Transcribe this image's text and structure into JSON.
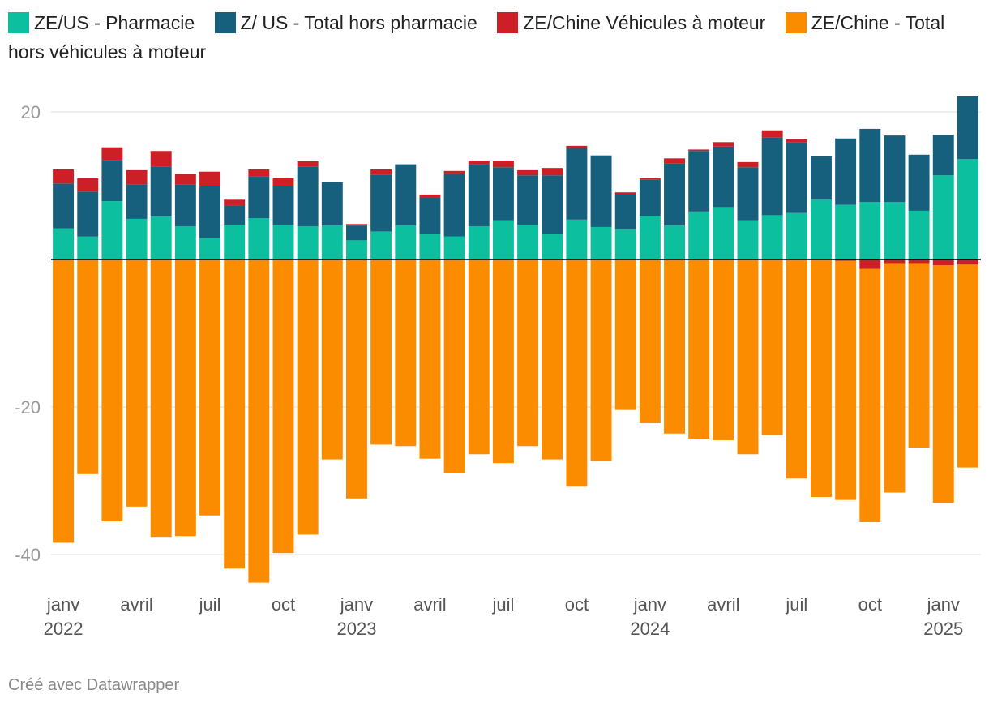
{
  "chart_data": {
    "type": "stacked-bar",
    "categories": [
      "janv",
      null,
      null,
      "avril",
      null,
      null,
      "juil",
      null,
      null,
      "oct",
      null,
      null,
      "janv",
      null,
      null,
      "avril",
      null,
      null,
      "juil",
      null,
      null,
      "oct",
      null,
      null,
      "janv",
      null,
      null,
      "avril",
      null,
      null,
      "juil",
      null,
      null,
      "oct",
      null,
      null,
      "janv",
      null
    ],
    "category_years": [
      "2022",
      null,
      null,
      null,
      null,
      null,
      null,
      null,
      null,
      null,
      null,
      null,
      "2023",
      null,
      null,
      null,
      null,
      null,
      null,
      null,
      null,
      null,
      null,
      null,
      "2024",
      null,
      null,
      null,
      null,
      null,
      null,
      null,
      null,
      null,
      null,
      null,
      "2025",
      null
    ],
    "series": [
      {
        "name": "ZE/US - Pharmacie",
        "color": "#0bbf9f",
        "values": [
          4.2,
          3.1,
          7.9,
          5.5,
          5.8,
          4.5,
          2.9,
          4.7,
          5.6,
          4.7,
          4.5,
          4.6,
          2.6,
          3.8,
          4.6,
          3.5,
          3.1,
          4.5,
          5.3,
          4.7,
          3.5,
          5.4,
          4.4,
          4.1,
          5.9,
          4.6,
          6.5,
          7.1,
          5.3,
          6.0,
          6.3,
          8.1,
          7.4,
          7.8,
          7.8,
          6.6,
          11.4,
          13.6
        ]
      },
      {
        "name": "Z/ US - Total hors pharmacie",
        "color": "#17607d",
        "values": [
          6.1,
          6.1,
          5.6,
          4.7,
          6.8,
          5.7,
          7.0,
          2.6,
          5.7,
          5.3,
          8.1,
          5.9,
          2.0,
          7.7,
          8.3,
          4.9,
          8.5,
          8.4,
          7.2,
          6.7,
          7.9,
          9.7,
          9.7,
          4.8,
          4.9,
          8.4,
          8.2,
          8.2,
          7.2,
          10.5,
          9.6,
          5.9,
          9.0,
          9.9,
          9.0,
          7.6,
          5.5,
          8.5
        ]
      },
      {
        "name": "ZE/Chine Véhicules à moteur",
        "color": "#cc1f26",
        "values": [
          1.9,
          1.8,
          1.7,
          1.9,
          2.1,
          1.4,
          2.0,
          0.8,
          0.9,
          1.1,
          0.7,
          0,
          0.2,
          0.7,
          0,
          0.4,
          0.4,
          0.5,
          0.9,
          0.7,
          1.0,
          0.3,
          0,
          0.2,
          0.2,
          0.7,
          0.2,
          0.6,
          0.7,
          1.0,
          0.4,
          0,
          -0.2,
          -1.3,
          -0.5,
          -0.5,
          -0.8,
          -0.7
        ]
      },
      {
        "name": "ZE/Chine - Total hors véhicules à moteur",
        "color": "#fb8c00",
        "values": [
          -38.4,
          -29.1,
          -35.5,
          -33.5,
          -37.6,
          -37.5,
          -34.7,
          -41.9,
          -43.8,
          -39.8,
          -37.3,
          -27.1,
          -32.4,
          -25.1,
          -25.3,
          -27.0,
          -29.0,
          -26.4,
          -27.6,
          -25.3,
          -27.1,
          -30.8,
          -27.3,
          -20.4,
          -22.2,
          -23.6,
          -24.3,
          -24.5,
          -26.4,
          -23.8,
          -29.7,
          -32.2,
          -32.4,
          -34.3,
          -31.1,
          -25.0,
          -32.2,
          -27.5
        ]
      }
    ],
    "ylim": [
      -44,
      22.5
    ],
    "yticks": [
      -40,
      -20,
      20
    ],
    "grid": true,
    "footer": "Créé avec Datawrapper"
  }
}
